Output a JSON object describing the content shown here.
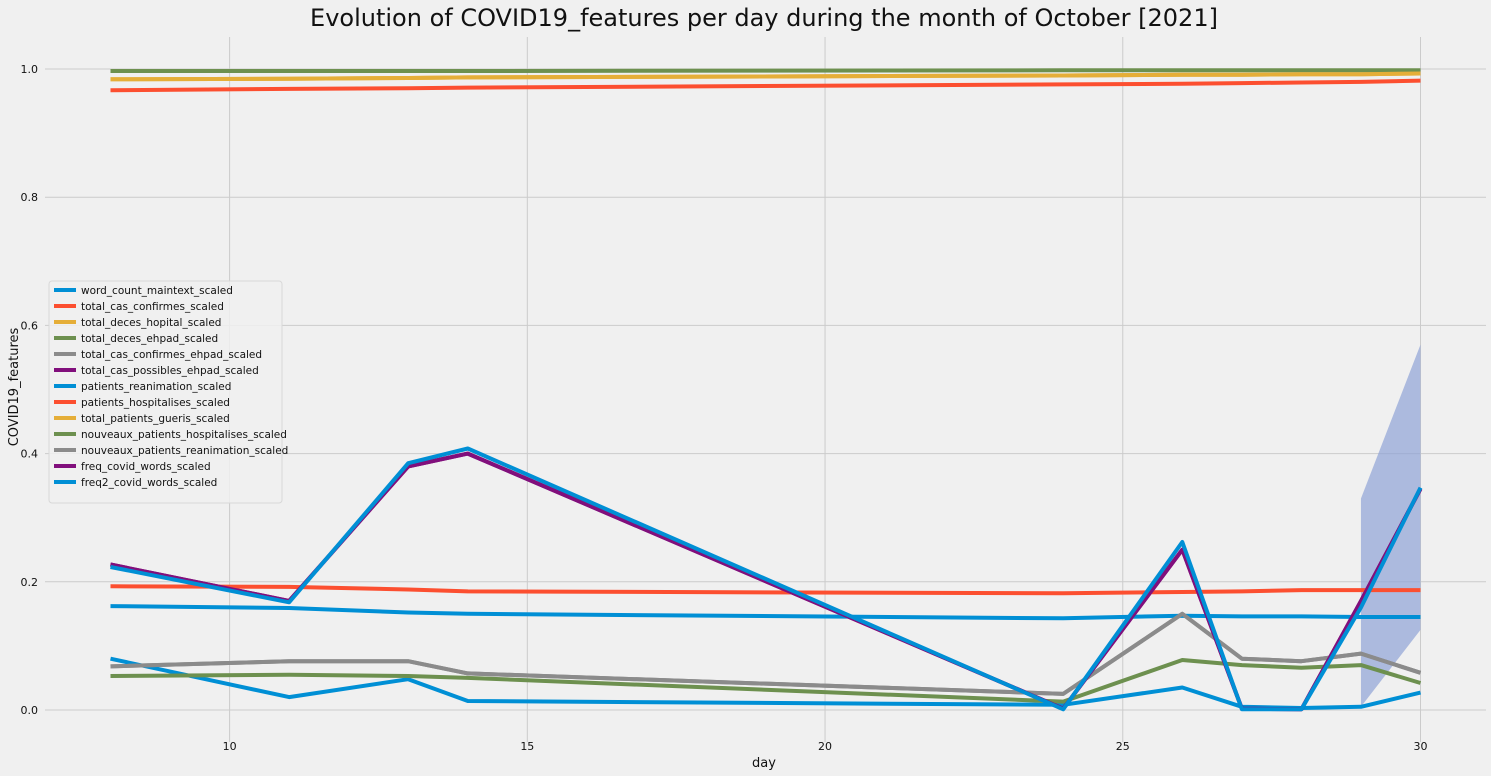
{
  "chart_data": {
    "type": "line",
    "title": "Evolution of COVID19_features per day during the month of October [2021]",
    "xlabel": "day",
    "ylabel": "COVID19_features",
    "xlim": [
      6.9,
      31.1
    ],
    "ylim": [
      -0.05,
      1.05
    ],
    "xticks": [
      10,
      15,
      20,
      25,
      30
    ],
    "yticks": [
      0.0,
      0.2,
      0.4,
      0.6,
      0.8,
      1.0
    ],
    "grid": true,
    "legend_position": "center-left",
    "x": [
      8,
      11,
      13,
      14,
      24,
      26,
      27,
      28,
      29,
      30
    ],
    "series": [
      {
        "name": "word_count_maintext_scaled",
        "color": "#008fd5",
        "values": [
          0.08,
          0.02,
          0.048,
          0.014,
          0.008,
          0.035,
          0.005,
          0.003,
          0.005,
          0.027
        ]
      },
      {
        "name": "total_cas_confirmes_scaled",
        "color": "#fc4f30",
        "values": [
          0.967,
          0.969,
          0.97,
          0.971,
          0.976,
          0.977,
          0.978,
          0.979,
          0.98,
          0.982
        ]
      },
      {
        "name": "total_deces_hopital_scaled",
        "color": "#e5ae38",
        "values": [
          0.984,
          0.985,
          0.986,
          0.987,
          0.99,
          0.991,
          0.991,
          0.992,
          0.992,
          0.993
        ]
      },
      {
        "name": "total_deces_ehpad_scaled",
        "color": "#6d904f",
        "values": [
          0.997,
          0.997,
          0.997,
          0.997,
          0.998,
          0.998,
          0.998,
          0.998,
          0.998,
          0.998
        ]
      },
      {
        "name": "total_cas_confirmes_ehpad_scaled",
        "color": "#8b8b8b",
        "values": [
          0.068,
          0.076,
          0.076,
          0.057,
          0.025,
          0.15,
          0.08,
          0.076,
          0.088,
          0.058
        ]
      },
      {
        "name": "total_cas_possibles_ehpad_scaled",
        "color": "#810f7c",
        "values": [
          0.227,
          0.17,
          0.38,
          0.4,
          0.002,
          0.25,
          0.002,
          0.001,
          0.17,
          0.345
        ]
      },
      {
        "name": "patients_reanimation_scaled",
        "color": "#008fd5",
        "values": [
          0.162,
          0.159,
          0.152,
          0.15,
          0.143,
          0.147,
          0.146,
          0.146,
          0.145,
          0.145
        ]
      },
      {
        "name": "patients_hospitalises_scaled",
        "color": "#fc4f30",
        "values": [
          0.193,
          0.192,
          0.188,
          0.185,
          0.182,
          0.184,
          0.185,
          0.187,
          0.187,
          0.187
        ]
      },
      {
        "name": "total_patients_gueris_scaled",
        "color": "#e5ae38",
        "values": [
          0.984,
          0.985,
          0.986,
          0.987,
          0.99,
          0.991,
          0.991,
          0.992,
          0.992,
          0.993
        ]
      },
      {
        "name": "nouveaux_patients_hospitalises_scaled",
        "color": "#6d904f",
        "values": [
          0.053,
          0.055,
          0.053,
          0.05,
          0.013,
          0.078,
          0.07,
          0.066,
          0.07,
          0.042
        ]
      },
      {
        "name": "nouveaux_patients_reanimation_scaled",
        "color": "#8b8b8b",
        "values": [
          0.068,
          0.076,
          0.076,
          0.057,
          0.025,
          0.15,
          0.08,
          0.076,
          0.088,
          0.058
        ]
      },
      {
        "name": "freq_covid_words_scaled",
        "color": "#810f7c",
        "values": [
          0.227,
          0.17,
          0.38,
          0.4,
          0.002,
          0.25,
          0.002,
          0.001,
          0.17,
          0.345
        ]
      },
      {
        "name": "freq2_covid_words_scaled",
        "color": "#008fd5",
        "values": [
          0.223,
          0.168,
          0.385,
          0.408,
          0.001,
          0.262,
          0.001,
          0.001,
          0.16,
          0.347
        ]
      }
    ],
    "confidence_band": {
      "x": [
        29,
        30
      ],
      "lower": [
        0.005,
        0.125
      ],
      "upper": [
        0.33,
        0.57
      ],
      "color": "#8fa3d6"
    }
  }
}
